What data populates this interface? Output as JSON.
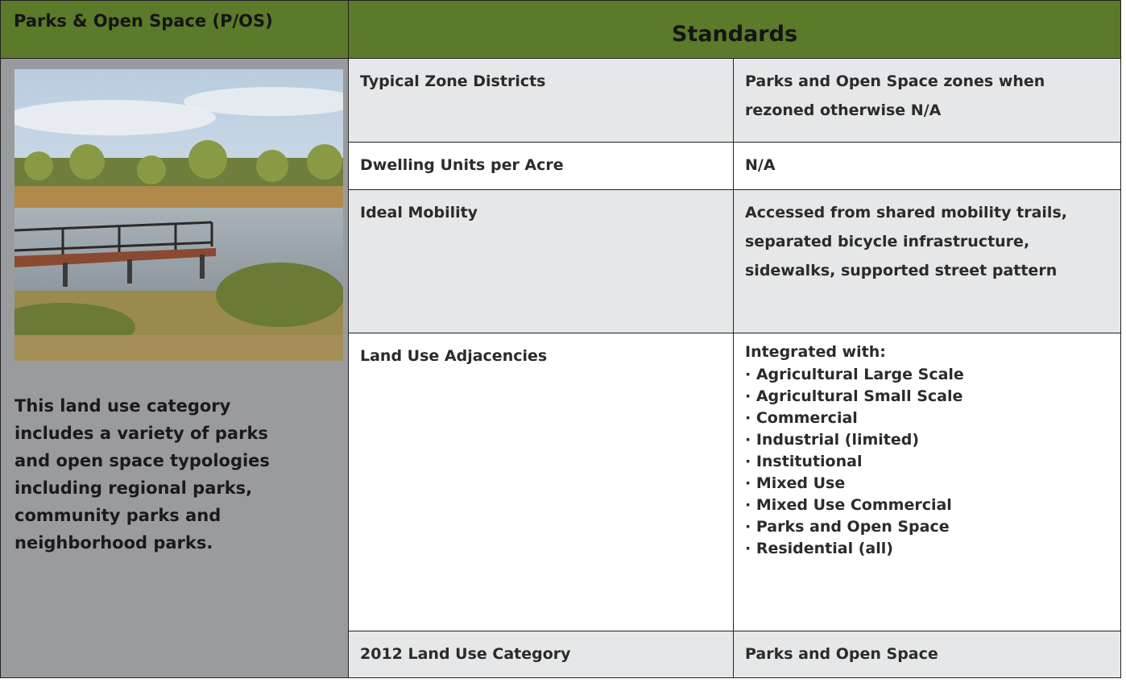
{
  "header": {
    "title": "Parks & Open Space (P/OS)",
    "standards": "Standards"
  },
  "left": {
    "description": "This land use category includes a variety of parks and open space typologies including regional parks, community parks and neighborhood parks."
  },
  "rows": [
    {
      "label": "Typical Zone Districts",
      "value": "Parks and Open Space zones when rezoned otherwise N/A"
    },
    {
      "label": "Dwelling Units per Acre",
      "value": "N/A"
    },
    {
      "label": "Ideal Mobility",
      "value": "Accessed from shared mobility trails, separated bicycle infrastructure, sidewalks, supported street pattern"
    },
    {
      "label": "Land Use Adjacencies",
      "intro": "Integrated with:",
      "items": [
        "· Agricultural Large Scale",
        "· Agricultural Small Scale",
        "· Commercial",
        "· Industrial (limited)",
        "· Institutional",
        "· Mixed Use",
        "· Mixed Use Commercial",
        "· Parks and Open Space",
        "· Residential (all)"
      ]
    },
    {
      "label": "2012 Land Use Category",
      "value": "Parks and Open Space"
    }
  ]
}
